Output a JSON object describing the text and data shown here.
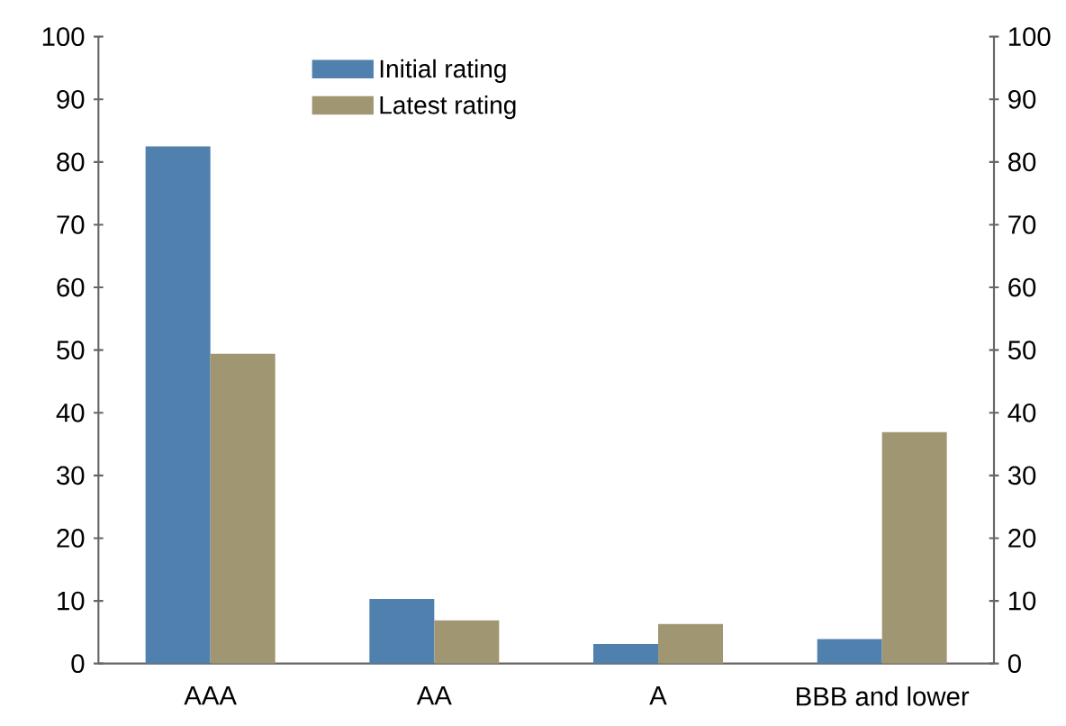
{
  "chart_data": {
    "type": "bar",
    "categories": [
      "AAA",
      "AA",
      "A",
      "BBB and lower"
    ],
    "series": [
      {
        "name": "Initial rating",
        "color": "#5081ae",
        "values": [
          82.5,
          10.3,
          3.1,
          3.9
        ]
      },
      {
        "name": "Latest rating",
        "color": "#a09672",
        "values": [
          49.4,
          6.9,
          6.3,
          36.9
        ]
      }
    ],
    "ylim": [
      0,
      100
    ],
    "yticks": [
      0,
      10,
      20,
      30,
      40,
      50,
      60,
      70,
      80,
      90,
      100
    ],
    "y2lim": [
      0,
      100
    ],
    "y2ticks": [
      0,
      10,
      20,
      30,
      40,
      50,
      60,
      70,
      80,
      90,
      100
    ],
    "legend": "top",
    "grid": false
  }
}
